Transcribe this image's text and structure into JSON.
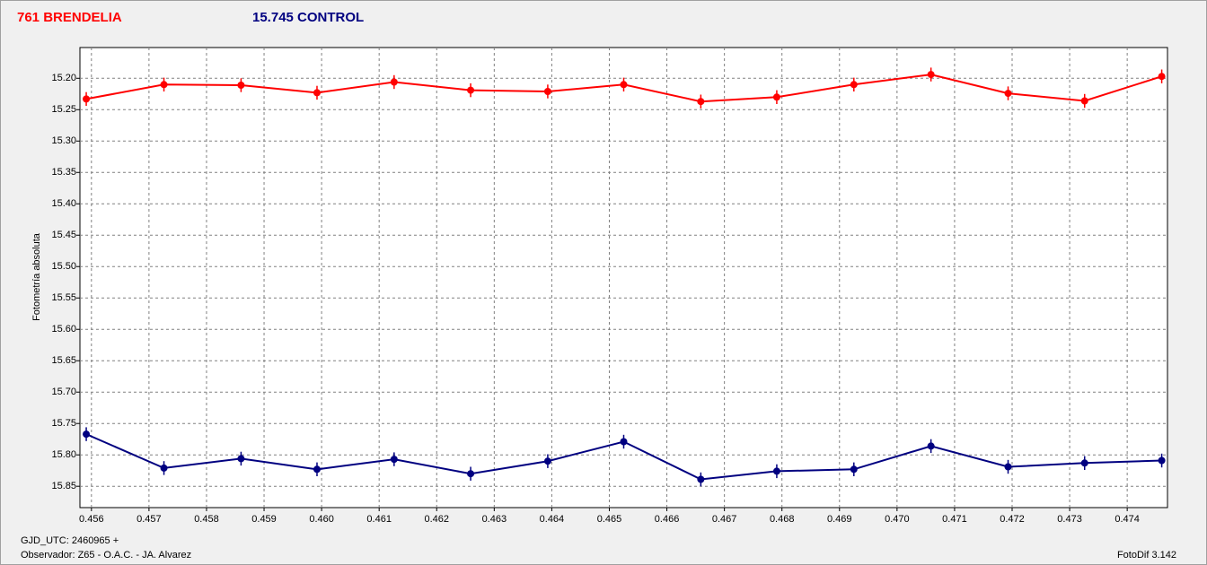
{
  "chart_data": {
    "type": "line",
    "y_label": "Fotometría absoluta",
    "x_label": "GJD_UTC: 2460965 +",
    "observer": "Observador: Z65 - O.A.C. - JA. Alvarez",
    "software": "FotoDif 3.142",
    "xlim": [
      0.4558,
      0.4747
    ],
    "ylim": [
      15.151,
      15.884
    ],
    "y_inverted": true,
    "grid": true,
    "xticks": [
      0.456,
      0.457,
      0.458,
      0.459,
      {
        "value": 0.46,
        "label": "0.460"
      },
      0.461,
      0.462,
      0.463,
      0.464,
      0.465,
      0.466,
      0.467,
      0.468,
      0.469,
      {
        "value": 0.47,
        "label": "0.470"
      },
      0.471,
      0.472,
      0.473,
      0.474
    ],
    "yticks": [
      {
        "value": 15.2,
        "label": "15.20"
      },
      15.25,
      {
        "value": 15.3,
        "label": "15.30"
      },
      15.35,
      {
        "value": 15.4,
        "label": "15.40"
      },
      15.45,
      {
        "value": 15.5,
        "label": "15.50"
      },
      15.55,
      {
        "value": 15.6,
        "label": "15.60"
      },
      15.65,
      {
        "value": 15.7,
        "label": "15.70"
      },
      15.75,
      {
        "value": 15.8,
        "label": "15.80"
      },
      15.85
    ],
    "x": [
      0.45591,
      0.45726,
      0.4586,
      0.45992,
      0.46126,
      0.46259,
      0.46393,
      0.46525,
      0.46659,
      0.46791,
      0.46925,
      0.47059,
      0.47193,
      0.47326,
      0.4746
    ],
    "series": [
      {
        "name": "761 BRENDELIA",
        "color": "#ff0000",
        "values": [
          15.233,
          15.21,
          15.211,
          15.223,
          15.206,
          15.219,
          15.221,
          15.21,
          15.237,
          15.23,
          15.21,
          15.194,
          15.224,
          15.236,
          15.197
        ],
        "errors": [
          0.011,
          0.011,
          0.011,
          0.011,
          0.011,
          0.011,
          0.011,
          0.011,
          0.011,
          0.011,
          0.011,
          0.011,
          0.011,
          0.011,
          0.011
        ]
      },
      {
        "name": "15.745 CONTROL",
        "color": "#000080",
        "values": [
          15.767,
          15.821,
          15.806,
          15.823,
          15.807,
          15.83,
          15.81,
          15.779,
          15.839,
          15.826,
          15.823,
          15.786,
          15.819,
          15.813,
          15.809
        ],
        "errors": [
          0.011,
          0.011,
          0.011,
          0.011,
          0.011,
          0.011,
          0.011,
          0.011,
          0.011,
          0.011,
          0.011,
          0.011,
          0.011,
          0.011,
          0.011
        ]
      }
    ]
  }
}
